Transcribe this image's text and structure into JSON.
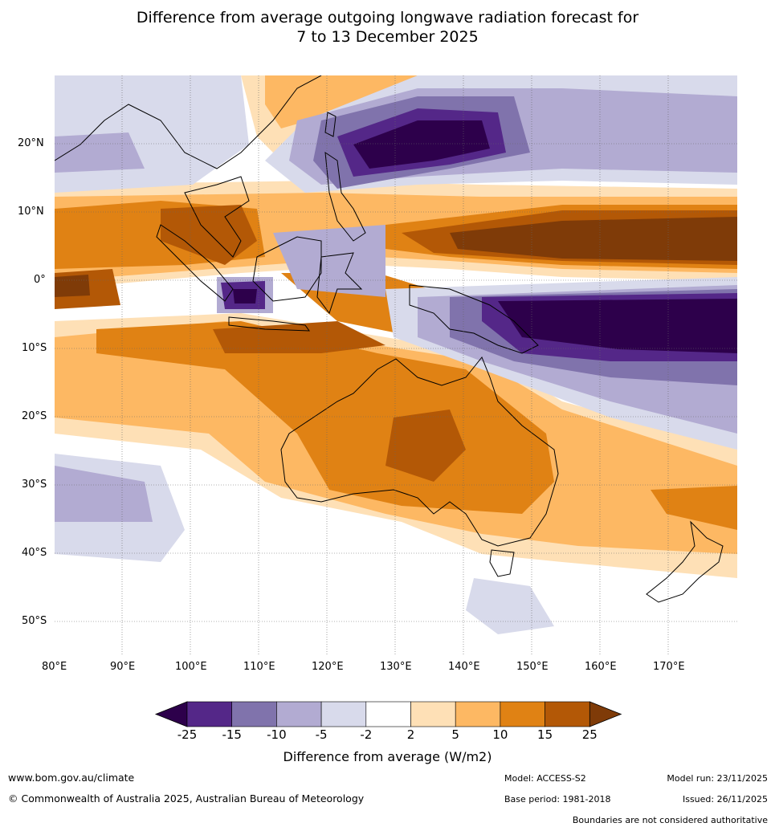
{
  "title_line1": "Difference from average outgoing longwave radiation forecast for",
  "title_line2": "7 to 13 December 2025",
  "lat_labels": [
    "20°N",
    "10°N",
    "0°",
    "10°S",
    "20°S",
    "30°S",
    "40°S",
    "50°S"
  ],
  "lon_labels": [
    "80°E",
    "90°E",
    "100°E",
    "110°E",
    "120°E",
    "130°E",
    "140°E",
    "150°E",
    "160°E",
    "170°E"
  ],
  "colorbar": {
    "ticks": [
      "-25",
      "-15",
      "-10",
      "-5",
      "-2",
      "2",
      "5",
      "10",
      "15",
      "25"
    ],
    "colors": [
      "#2d004b",
      "#542788",
      "#8073ac",
      "#b2abd2",
      "#d8daeb",
      "#ffffff",
      "#fee0b6",
      "#fdb863",
      "#e08214",
      "#b35806",
      "#7f3b08"
    ],
    "label": "Difference from average (W/m2)"
  },
  "footer": {
    "website": "www.bom.gov.au/climate",
    "copyright": "© Commonwealth of Australia 2025, Australian Bureau of Meteorology",
    "model": "Model: ACCESS-S2",
    "model_run": "Model run: 23/11/2025",
    "base_period": "Base period: 1981-2018",
    "issued": "Issued: 26/11/2025",
    "disclaimer": "Boundaries are not considered authoritative"
  }
}
